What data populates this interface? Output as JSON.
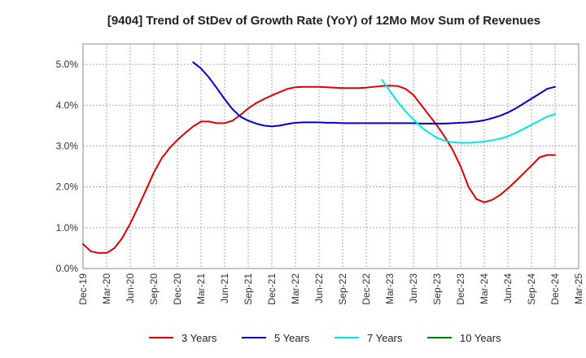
{
  "chart_data": {
    "type": "line",
    "title": "[9404]  Trend of StDev of Growth Rate (YoY) of 12Mo Mov Sum of Revenues",
    "xlabel": "",
    "ylabel": "",
    "x_ticks": [
      "Dec-19",
      "Mar-20",
      "Jun-20",
      "Sep-20",
      "Dec-20",
      "Mar-21",
      "Jun-21",
      "Sep-21",
      "Dec-21",
      "Mar-22",
      "Jun-22",
      "Sep-22",
      "Dec-22",
      "Mar-23",
      "Jun-23",
      "Sep-23",
      "Dec-23",
      "Mar-24",
      "Jun-24",
      "Sep-24",
      "Dec-24",
      "Mar-25"
    ],
    "x_unit": "months since Dec-19",
    "xlim": [
      0,
      63
    ],
    "ylim": [
      0,
      5.5
    ],
    "y_ticks": [
      0,
      1,
      2,
      3,
      4,
      5
    ],
    "y_tick_labels": [
      "0.0%",
      "1.0%",
      "2.0%",
      "3.0%",
      "4.0%",
      "5.0%"
    ],
    "grid": true,
    "legend_position": "bottom",
    "series": [
      {
        "name": "3 Years",
        "color": "#dd0000",
        "x": [
          0,
          1,
          2,
          3,
          4,
          5,
          6,
          7,
          8,
          9,
          10,
          11,
          12,
          13,
          14,
          15,
          16,
          17,
          18,
          19,
          20,
          21,
          22,
          23,
          24,
          25,
          26,
          27,
          28,
          29,
          30,
          31,
          32,
          33,
          34,
          35,
          36,
          37,
          38,
          39,
          40,
          41,
          42,
          43,
          44,
          45,
          46,
          47,
          48,
          49,
          50,
          51,
          52,
          53,
          54,
          55,
          56,
          57,
          58,
          59,
          60
        ],
        "values": [
          0.6,
          0.42,
          0.38,
          0.38,
          0.5,
          0.75,
          1.1,
          1.5,
          1.92,
          2.35,
          2.7,
          2.95,
          3.15,
          3.32,
          3.48,
          3.6,
          3.6,
          3.56,
          3.56,
          3.62,
          3.76,
          3.92,
          4.05,
          4.15,
          4.24,
          4.32,
          4.4,
          4.44,
          4.45,
          4.45,
          4.45,
          4.44,
          4.43,
          4.42,
          4.42,
          4.42,
          4.43,
          4.45,
          4.47,
          4.48,
          4.47,
          4.4,
          4.25,
          4.0,
          3.75,
          3.5,
          3.22,
          2.9,
          2.5,
          2.0,
          1.7,
          1.62,
          1.68,
          1.8,
          1.96,
          2.14,
          2.33,
          2.52,
          2.72,
          2.78,
          2.78
        ]
      },
      {
        "name": "5 Years",
        "color": "#0000cc",
        "x": [
          14,
          15,
          16,
          17,
          18,
          19,
          20,
          21,
          22,
          23,
          24,
          25,
          26,
          27,
          28,
          29,
          30,
          31,
          32,
          33,
          34,
          35,
          36,
          37,
          38,
          39,
          40,
          41,
          42,
          43,
          44,
          45,
          46,
          47,
          48,
          49,
          50,
          51,
          52,
          53,
          54,
          55,
          56,
          57,
          58,
          59,
          60
        ],
        "values": [
          5.05,
          4.9,
          4.68,
          4.42,
          4.15,
          3.9,
          3.72,
          3.62,
          3.55,
          3.5,
          3.48,
          3.5,
          3.54,
          3.57,
          3.58,
          3.58,
          3.58,
          3.57,
          3.57,
          3.56,
          3.56,
          3.56,
          3.56,
          3.56,
          3.56,
          3.56,
          3.56,
          3.56,
          3.56,
          3.55,
          3.55,
          3.55,
          3.55,
          3.56,
          3.57,
          3.58,
          3.6,
          3.63,
          3.68,
          3.74,
          3.82,
          3.92,
          4.04,
          4.16,
          4.28,
          4.4,
          4.45
        ]
      },
      {
        "name": "7 Years",
        "color": "#00e5e5",
        "x": [
          38,
          39,
          40,
          41,
          42,
          43,
          44,
          45,
          46,
          47,
          48,
          49,
          50,
          51,
          52,
          53,
          54,
          55,
          56,
          57,
          58,
          59,
          60
        ],
        "values": [
          4.62,
          4.35,
          4.08,
          3.85,
          3.65,
          3.46,
          3.32,
          3.2,
          3.13,
          3.09,
          3.08,
          3.08,
          3.09,
          3.11,
          3.14,
          3.18,
          3.24,
          3.32,
          3.42,
          3.52,
          3.62,
          3.72,
          3.78
        ]
      },
      {
        "name": "10 Years",
        "color": "#008000",
        "x": [],
        "values": []
      }
    ]
  }
}
